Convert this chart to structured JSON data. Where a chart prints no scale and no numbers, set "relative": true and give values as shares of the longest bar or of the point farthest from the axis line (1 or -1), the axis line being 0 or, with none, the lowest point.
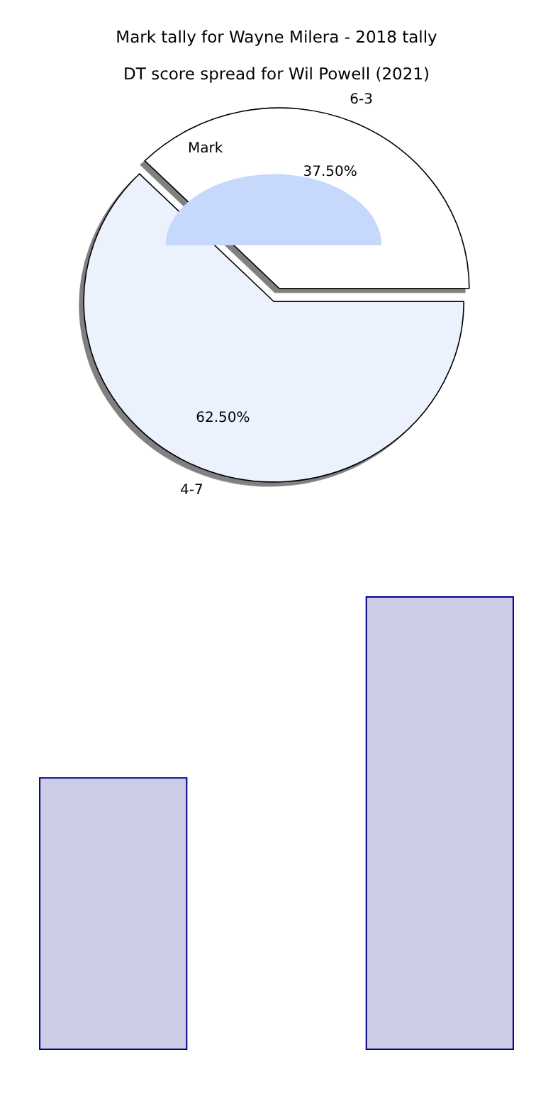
{
  "chart_data": [
    {
      "type": "pie",
      "title": "Mark tally for Wayne Milera - 2018 tally",
      "categories": [
        "Mark"
      ],
      "values": [
        100
      ],
      "colors": [
        "#c6d9fd"
      ]
    },
    {
      "type": "pie",
      "title": "DT score spread for Wil Powell (2021)",
      "categories": [
        "6-3",
        "4-7"
      ],
      "values": [
        37.5,
        62.5
      ],
      "colors": [
        "#ffffff",
        "#ebf1fd"
      ],
      "value_labels": [
        "37.50%",
        "62.50%"
      ]
    },
    {
      "type": "bar",
      "relative": true,
      "categories": [
        null,
        null
      ],
      "values": [
        0.6,
        1
      ],
      "color": "#cccce6"
    }
  ]
}
